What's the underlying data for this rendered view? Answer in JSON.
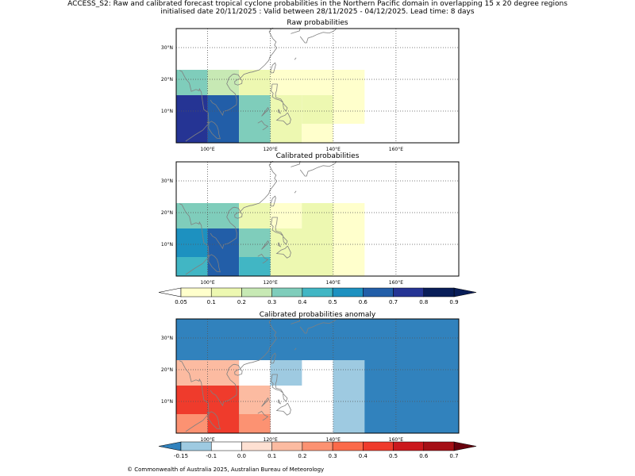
{
  "header": {
    "line1": "ACCESS_S2: Raw and calibrated forecast tropical cyclone probabilities in the Northern Pacific domain in overlapping 15 x 20 degree regions",
    "line2": "initialised date 20/11/2025 :  Valid between 28/11/2025 - 04/12/2025. Lead time: 8 days"
  },
  "axes": {
    "lon_labels": [
      "100°E",
      "120°E",
      "140°E",
      "160°E"
    ],
    "lat_labels": [
      "30°N",
      "20°N",
      "10°N"
    ],
    "lon_values": [
      100,
      120,
      140,
      160
    ],
    "lat_values": [
      30,
      20,
      10
    ],
    "lon_range": [
      90,
      180
    ],
    "lat_range": [
      0,
      36
    ]
  },
  "panels": [
    {
      "title": "Raw probabilities",
      "cells": [
        {
          "lon0": 90,
          "lon1": 100,
          "lat0": 0,
          "lat1": 15,
          "color": "#253494"
        },
        {
          "lon0": 100,
          "lon1": 110,
          "lat0": 0,
          "lat1": 15,
          "color": "#225ea8"
        },
        {
          "lon0": 110,
          "lon1": 120,
          "lat0": 0,
          "lat1": 15,
          "color": "#7fcdbb"
        },
        {
          "lon0": 120,
          "lon1": 130,
          "lat0": 0,
          "lat1": 6,
          "color": "#edf8b1"
        },
        {
          "lon0": 120,
          "lon1": 130,
          "lat0": 6,
          "lat1": 15,
          "color": "#edf8b1"
        },
        {
          "lon0": 130,
          "lon1": 140,
          "lat0": 6,
          "lat1": 15,
          "color": "#edf8b1"
        },
        {
          "lon0": 130,
          "lon1": 140,
          "lat0": 0,
          "lat1": 6,
          "color": "#ffffcc"
        },
        {
          "lon0": 140,
          "lon1": 150,
          "lat0": 6,
          "lat1": 15,
          "color": "#ffffcc"
        },
        {
          "lon0": 90,
          "lon1": 100,
          "lat0": 15,
          "lat1": 23,
          "color": "#7fcdbb"
        },
        {
          "lon0": 100,
          "lon1": 110,
          "lat0": 15,
          "lat1": 23,
          "color": "#c7e9b4"
        },
        {
          "lon0": 110,
          "lon1": 120,
          "lat0": 15,
          "lat1": 23,
          "color": "#edf8b1"
        },
        {
          "lon0": 120,
          "lon1": 150,
          "lat0": 15,
          "lat1": 23,
          "color": "#ffffcc"
        }
      ]
    },
    {
      "title": "Calibrated probabilities",
      "cells": [
        {
          "lon0": 90,
          "lon1": 100,
          "lat0": 0,
          "lat1": 6,
          "color": "#41b6c4"
        },
        {
          "lon0": 90,
          "lon1": 100,
          "lat0": 6,
          "lat1": 15,
          "color": "#1d91c0"
        },
        {
          "lon0": 100,
          "lon1": 110,
          "lat0": 0,
          "lat1": 15,
          "color": "#225ea8"
        },
        {
          "lon0": 110,
          "lon1": 120,
          "lat0": 0,
          "lat1": 6,
          "color": "#41b6c4"
        },
        {
          "lon0": 110,
          "lon1": 120,
          "lat0": 6,
          "lat1": 15,
          "color": "#7fcdbb"
        },
        {
          "lon0": 120,
          "lon1": 140,
          "lat0": 0,
          "lat1": 15,
          "color": "#edf8b1"
        },
        {
          "lon0": 140,
          "lon1": 150,
          "lat0": 0,
          "lat1": 15,
          "color": "#ffffcc"
        },
        {
          "lon0": 90,
          "lon1": 110,
          "lat0": 15,
          "lat1": 23,
          "color": "#7fcdbb"
        },
        {
          "lon0": 110,
          "lon1": 120,
          "lat0": 15,
          "lat1": 23,
          "color": "#edf8b1"
        },
        {
          "lon0": 120,
          "lon1": 130,
          "lat0": 15,
          "lat1": 23,
          "color": "#ffffcc"
        },
        {
          "lon0": 130,
          "lon1": 140,
          "lat0": 15,
          "lat1": 23,
          "color": "#edf8b1"
        },
        {
          "lon0": 140,
          "lon1": 150,
          "lat0": 15,
          "lat1": 23,
          "color": "#ffffcc"
        }
      ]
    },
    {
      "title": "Calibrated probabilities anomaly",
      "background_color": "#3182bd",
      "cells": [
        {
          "lon0": 90,
          "lon1": 110,
          "lat0": 15,
          "lat1": 23,
          "color": "#fcbba1"
        },
        {
          "lon0": 110,
          "lon1": 120,
          "lat0": 15,
          "lat1": 23,
          "color": "#ffffff"
        },
        {
          "lon0": 120,
          "lon1": 130,
          "lat0": 15,
          "lat1": 23,
          "color": "#9ecae1"
        },
        {
          "lon0": 130,
          "lon1": 140,
          "lat0": 15,
          "lat1": 23,
          "color": "#ffffff"
        },
        {
          "lon0": 140,
          "lon1": 150,
          "lat0": 0,
          "lat1": 23,
          "color": "#9ecae1"
        },
        {
          "lon0": 90,
          "lon1": 100,
          "lat0": 0,
          "lat1": 6,
          "color": "#fc9272"
        },
        {
          "lon0": 90,
          "lon1": 100,
          "lat0": 6,
          "lat1": 15,
          "color": "#ef3b2c"
        },
        {
          "lon0": 100,
          "lon1": 110,
          "lat0": 0,
          "lat1": 15,
          "color": "#ef3b2c"
        },
        {
          "lon0": 110,
          "lon1": 120,
          "lat0": 0,
          "lat1": 6,
          "color": "#fc9272"
        },
        {
          "lon0": 110,
          "lon1": 120,
          "lat0": 6,
          "lat1": 15,
          "color": "#fcbba1"
        },
        {
          "lon0": 120,
          "lon1": 140,
          "lat0": 0,
          "lat1": 15,
          "color": "#ffffff"
        }
      ]
    }
  ],
  "colorbars": [
    {
      "labels": [
        "0.05",
        "0.1",
        "0.2",
        "0.3",
        "0.4",
        "0.5",
        "0.6",
        "0.7",
        "0.8",
        "0.9"
      ],
      "colors": [
        "#ffffcc",
        "#edf8b1",
        "#c7e9b4",
        "#7fcdbb",
        "#41b6c4",
        "#1d91c0",
        "#225ea8",
        "#253494",
        "#081d58"
      ],
      "under_color": "#ffffff",
      "over_color": "#081d58"
    },
    {
      "labels": [
        "-0.15",
        "-0.1",
        "0.0",
        "0.1",
        "0.2",
        "0.3",
        "0.4",
        "0.5",
        "0.6",
        "0.7"
      ],
      "colors": [
        "#9ecae1",
        "#ffffff",
        "#fee0d2",
        "#fcbba1",
        "#fc9272",
        "#fb6a4a",
        "#ef3b2c",
        "#cb181d",
        "#a50f15"
      ],
      "under_color": "#3182bd",
      "over_color": "#67000d"
    }
  ],
  "footer": {
    "copyright": "© Commonwealth of Australia 2025, Australian Bureau of Meteorology"
  }
}
